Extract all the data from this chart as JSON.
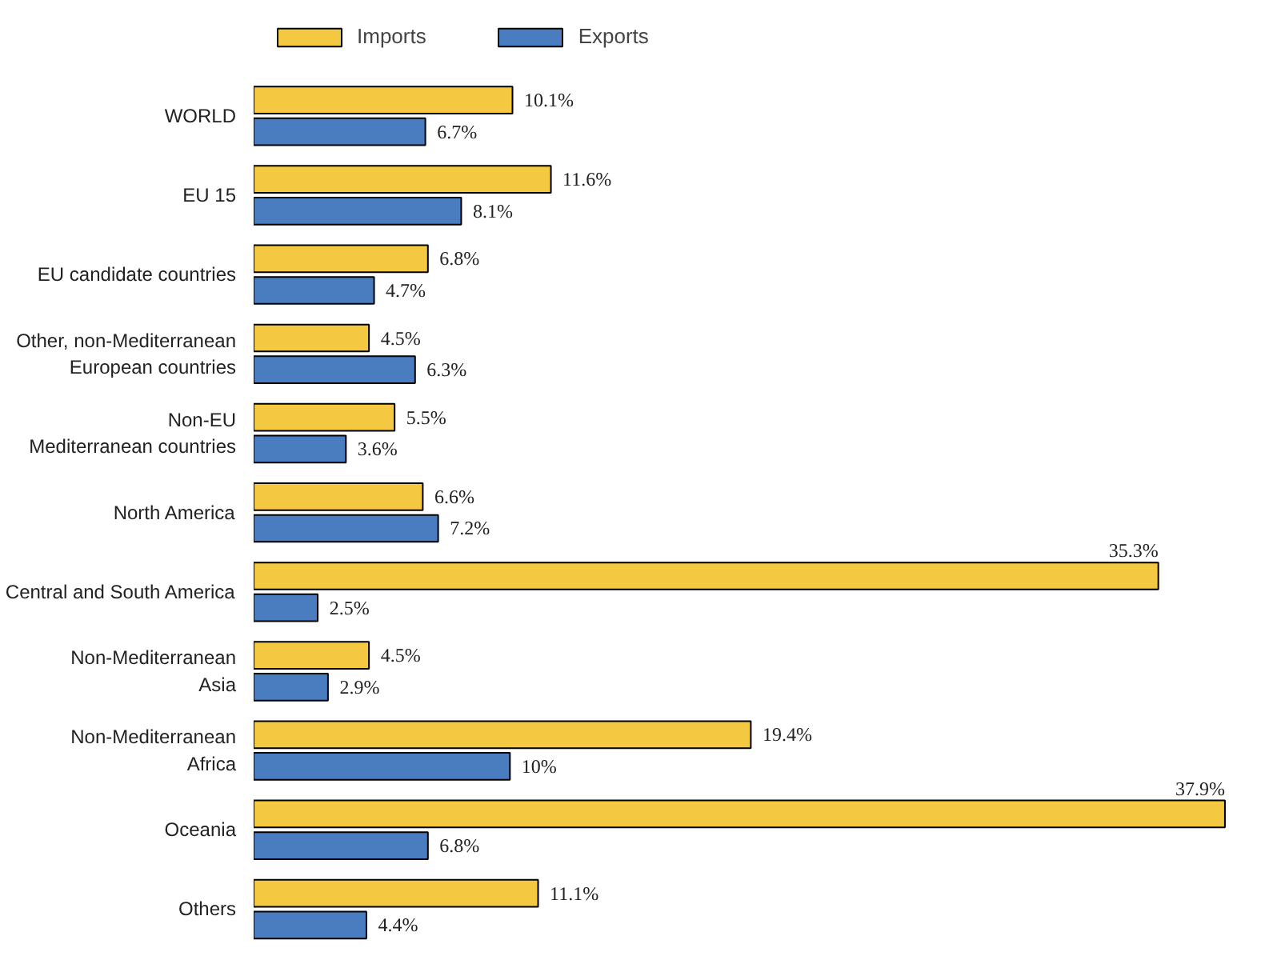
{
  "chart_data": {
    "type": "bar",
    "orientation": "horizontal",
    "categories": [
      "WORLD",
      "EU 15",
      "EU candidate countries",
      "Other, non-Mediterranean\nEuropean countries",
      "Non-EU\nMediterranean countries",
      "North America",
      "Central and South America",
      "Non-Mediterranean\nAsia",
      "Non-Mediterranean\nAfrica",
      "Oceania",
      "Others"
    ],
    "series": [
      {
        "name": "Imports",
        "color": "#f5c842",
        "values": [
          10.1,
          11.6,
          6.8,
          4.5,
          5.5,
          6.6,
          35.3,
          4.5,
          19.4,
          37.9,
          11.1
        ],
        "value_labels": [
          "10.1%",
          "11.6%",
          "6.8%",
          "4.5%",
          "5.5%",
          "6.6%",
          "35.3%",
          "4.5%",
          "19.4%",
          "37.9%",
          "11.1%"
        ]
      },
      {
        "name": "Exports",
        "color": "#4a7cc0",
        "values": [
          6.7,
          8.1,
          4.7,
          6.3,
          3.6,
          7.2,
          2.5,
          2.9,
          10,
          6.8,
          4.4
        ],
        "value_labels": [
          "6.7%",
          "8.1%",
          "4.7%",
          "6.3%",
          "3.6%",
          "7.2%",
          "2.5%",
          "2.9%",
          "10%",
          "6.8%",
          "4.4%"
        ]
      }
    ],
    "legend": "top",
    "tick_labels": "y",
    "grid": false
  }
}
